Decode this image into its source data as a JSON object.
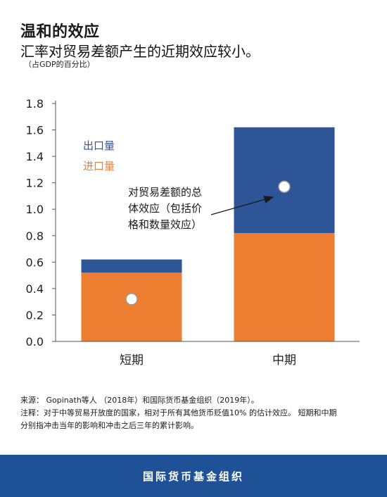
{
  "header": {
    "title": "温和的效应",
    "subtitle": "汇率对贸易差额产生的近期效应较小。",
    "unit": "（占GDP的百分比）"
  },
  "chart_data": {
    "type": "bar",
    "stacked": true,
    "categories": [
      "短期",
      "中期"
    ],
    "series": [
      {
        "name": "进口量",
        "color": "#ed7d31",
        "values": [
          0.52,
          0.82
        ]
      },
      {
        "name": "出口量",
        "color": "#2e5597",
        "values": [
          0.1,
          0.8
        ]
      }
    ],
    "total_effect": {
      "label": "对贸易差额的总体效应（包括价格和数量效应）",
      "values": [
        0.32,
        1.17
      ]
    },
    "yticks": [
      "0.0",
      "0.2",
      "0.4",
      "0.6",
      "0.8",
      "1.0",
      "1.2",
      "1.4",
      "1.6",
      "1.8"
    ],
    "ylim": [
      0,
      1.8
    ],
    "legend": [
      {
        "label": "出口量",
        "color": "#2e5597"
      },
      {
        "label": "进口量",
        "color": "#ed7d31"
      }
    ],
    "annotation_lines": [
      "对贸易差额的总",
      "体效应（包括价",
      "格和数量效应）"
    ],
    "grid": false,
    "legend_position": "upper-left"
  },
  "notes": {
    "source": "来源： Gopinath等人 （2018年）和国际货币基金组织（2019年）。",
    "note_line1": "注释：对于中等贸易开放度的国家，相对于所有其他货币贬值10% 的估计效应。 短期和中期",
    "note_line2": "分别指冲击当年的影响和冲击之后三年的累计影响。"
  },
  "footer": {
    "org": "国际货币基金组织"
  }
}
